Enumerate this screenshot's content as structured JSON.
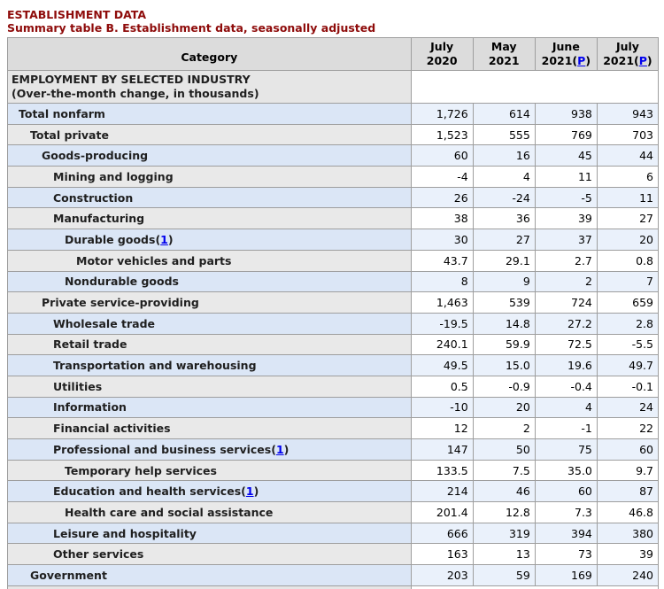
{
  "page_title": "ESTABLISHMENT DATA",
  "subtitle": "Summary table B. Establishment data, seasonally adjusted",
  "table": {
    "category_header": "Category",
    "preliminary_mark": "P",
    "columns": [
      {
        "month": "July",
        "year": "2020",
        "p": false
      },
      {
        "month": "May",
        "year": "2021",
        "p": false
      },
      {
        "month": "June",
        "year": "2021",
        "p": true
      },
      {
        "month": "July",
        "year": "2021",
        "p": true
      }
    ],
    "section": {
      "line1": "EMPLOYMENT BY SELECTED INDUSTRY",
      "line2": "(Over-the-month change, in thousands)"
    },
    "rows": [
      {
        "label": "Total nonfarm",
        "indent": 0,
        "footnote": null,
        "values": [
          "1,726",
          "614",
          "938",
          "943"
        ]
      },
      {
        "label": "Total private",
        "indent": 1,
        "footnote": null,
        "values": [
          "1,523",
          "555",
          "769",
          "703"
        ]
      },
      {
        "label": "Goods-producing",
        "indent": 2,
        "footnote": null,
        "values": [
          "60",
          "16",
          "45",
          "44"
        ]
      },
      {
        "label": "Mining and logging",
        "indent": 3,
        "footnote": null,
        "values": [
          "-4",
          "4",
          "11",
          "6"
        ]
      },
      {
        "label": "Construction",
        "indent": 3,
        "footnote": null,
        "values": [
          "26",
          "-24",
          "-5",
          "11"
        ]
      },
      {
        "label": "Manufacturing",
        "indent": 3,
        "footnote": null,
        "values": [
          "38",
          "36",
          "39",
          "27"
        ]
      },
      {
        "label": "Durable goods",
        "indent": 4,
        "footnote": "1",
        "values": [
          "30",
          "27",
          "37",
          "20"
        ]
      },
      {
        "label": "Motor vehicles and parts",
        "indent": 5,
        "footnote": null,
        "values": [
          "43.7",
          "29.1",
          "2.7",
          "0.8"
        ]
      },
      {
        "label": "Nondurable goods",
        "indent": 4,
        "footnote": null,
        "values": [
          "8",
          "9",
          "2",
          "7"
        ]
      },
      {
        "label": "Private service-providing",
        "indent": 2,
        "footnote": null,
        "values": [
          "1,463",
          "539",
          "724",
          "659"
        ]
      },
      {
        "label": "Wholesale trade",
        "indent": 3,
        "footnote": null,
        "values": [
          "-19.5",
          "14.8",
          "27.2",
          "2.8"
        ]
      },
      {
        "label": "Retail trade",
        "indent": 3,
        "footnote": null,
        "values": [
          "240.1",
          "59.9",
          "72.5",
          "-5.5"
        ]
      },
      {
        "label": "Transportation and warehousing",
        "indent": 3,
        "footnote": null,
        "values": [
          "49.5",
          "15.0",
          "19.6",
          "49.7"
        ]
      },
      {
        "label": "Utilities",
        "indent": 3,
        "footnote": null,
        "values": [
          "0.5",
          "-0.9",
          "-0.4",
          "-0.1"
        ]
      },
      {
        "label": "Information",
        "indent": 3,
        "footnote": null,
        "values": [
          "-10",
          "20",
          "4",
          "24"
        ]
      },
      {
        "label": "Financial activities",
        "indent": 3,
        "footnote": null,
        "values": [
          "12",
          "2",
          "-1",
          "22"
        ]
      },
      {
        "label": "Professional and business services",
        "indent": 3,
        "footnote": "1",
        "values": [
          "147",
          "50",
          "75",
          "60"
        ]
      },
      {
        "label": "Temporary help services",
        "indent": 4,
        "footnote": null,
        "values": [
          "133.5",
          "7.5",
          "35.0",
          "9.7"
        ]
      },
      {
        "label": "Education and health services",
        "indent": 3,
        "footnote": "1",
        "values": [
          "214",
          "46",
          "60",
          "87"
        ]
      },
      {
        "label": "Health care and social assistance",
        "indent": 4,
        "footnote": null,
        "values": [
          "201.4",
          "12.8",
          "7.3",
          "46.8"
        ]
      },
      {
        "label": "Leisure and hospitality",
        "indent": 3,
        "footnote": null,
        "values": [
          "666",
          "319",
          "394",
          "380"
        ]
      },
      {
        "label": "Other services",
        "indent": 3,
        "footnote": null,
        "values": [
          "163",
          "13",
          "73",
          "39"
        ]
      },
      {
        "label": "Government",
        "indent": 1,
        "footnote": null,
        "values": [
          "203",
          "59",
          "169",
          "240"
        ]
      }
    ]
  },
  "colors": {
    "title_color": "#8e0b0a",
    "link_color": "#0000ee",
    "row_blue_category": "#dbe6f6",
    "row_blue_value": "#eaf1fb",
    "row_gray_category": "#e9e9e9",
    "row_gray_value": "#ffffff",
    "header_bg": "#dcdcdc",
    "section_bg": "#e6e6e6",
    "border_inner": "#9e9e9e",
    "border_outer": "#7d7d7d"
  }
}
